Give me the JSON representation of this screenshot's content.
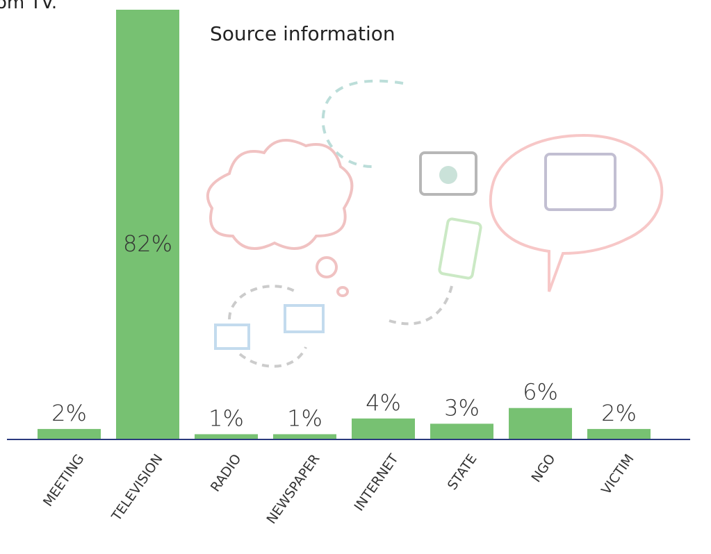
{
  "chart_data": {
    "type": "bar",
    "title": "Source information",
    "annotation": "om TV.",
    "categories": [
      "MEETING",
      "TELEVISION",
      "RADIO",
      "NEWSPAPER",
      "INTERNET",
      "STATE",
      "NGO",
      "VICTIM"
    ],
    "values": [
      2,
      82,
      1,
      1,
      4,
      3,
      6,
      2
    ],
    "value_labels": [
      "2%",
      "82%",
      "1%",
      "1%",
      "4%",
      "3%",
      "6%",
      "2%"
    ],
    "color": "#77c172",
    "axis_color": "#2b3a7e"
  }
}
